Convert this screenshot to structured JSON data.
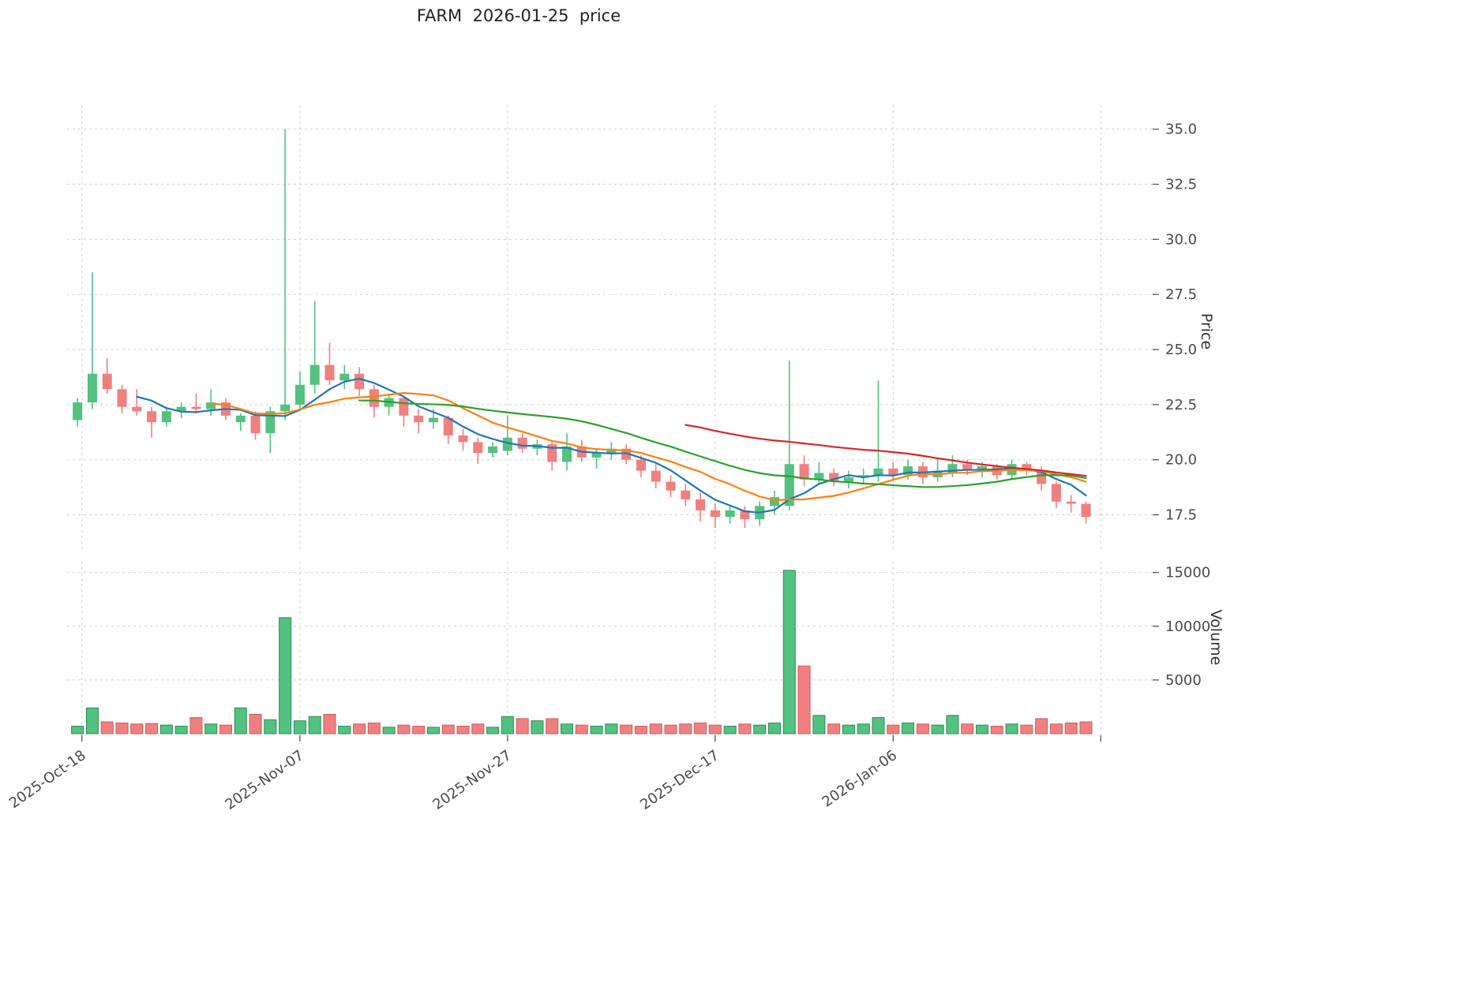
{
  "chart_data": {
    "type": "candlestick+volume",
    "title": "FARM  2026-01-25  price",
    "ylabel": "Price",
    "ylabel_volume": "Volume",
    "up_color": "#53c17f",
    "down_color": "#f08080",
    "up_edge": "#2e8b57",
    "down_edge": "#cd5c5c",
    "mav_windows": [
      5,
      10,
      20,
      42
    ],
    "mav_colors": [
      "#1f77b4",
      "#ff7f0e",
      "#2ca02c",
      "#d62728"
    ],
    "price_ticks": [
      17.5,
      20.0,
      22.5,
      25.0,
      27.5,
      30.0,
      32.5,
      35.0
    ],
    "price_ylim": [
      15.8,
      36.1
    ],
    "volume_ticks": [
      5000,
      10000,
      15000
    ],
    "volume_ylim": [
      0,
      16000
    ],
    "xlim": [
      -0.7,
      72.5
    ],
    "xticks": [
      {
        "i": 0.3,
        "label": "2025-Oct-18"
      },
      {
        "i": 15,
        "label": "2025-Nov-07"
      },
      {
        "i": 29,
        "label": "2025-Nov-27"
      },
      {
        "i": 43,
        "label": "2025-Dec-17"
      },
      {
        "i": 55,
        "label": "2026-Jan-06"
      },
      {
        "i": 69,
        "label": ""
      }
    ],
    "dates": [
      "2025-10-17",
      "2025-10-20",
      "2025-10-21",
      "2025-10-22",
      "2025-10-23",
      "2025-10-24",
      "2025-10-27",
      "2025-10-28",
      "2025-10-29",
      "2025-10-30",
      "2025-10-31",
      "2025-11-03",
      "2025-11-04",
      "2025-11-05",
      "2025-11-06",
      "2025-11-07",
      "2025-11-10",
      "2025-11-11",
      "2025-11-12",
      "2025-11-13",
      "2025-11-14",
      "2025-11-17",
      "2025-11-18",
      "2025-11-19",
      "2025-11-20",
      "2025-11-21",
      "2025-11-24",
      "2025-11-25",
      "2025-11-26",
      "2025-11-27",
      "2025-11-28",
      "2025-12-01",
      "2025-12-02",
      "2025-12-03",
      "2025-12-04",
      "2025-12-05",
      "2025-12-08",
      "2025-12-09",
      "2025-12-10",
      "2025-12-11",
      "2025-12-12",
      "2025-12-15",
      "2025-12-16",
      "2025-12-17",
      "2025-12-18",
      "2025-12-19",
      "2025-12-22",
      "2025-12-23",
      "2025-12-24",
      "2025-12-26",
      "2025-12-29",
      "2025-12-30",
      "2025-12-31",
      "2026-01-02",
      "2026-01-05",
      "2026-01-06",
      "2026-01-07",
      "2026-01-08",
      "2026-01-09",
      "2026-01-12",
      "2026-01-13",
      "2026-01-14",
      "2026-01-15",
      "2026-01-16",
      "2026-01-19",
      "2026-01-20",
      "2026-01-21",
      "2026-01-22",
      "2026-01-23"
    ],
    "ohlc": [
      [
        21.8,
        22.8,
        21.5,
        22.6
      ],
      [
        22.6,
        28.5,
        22.3,
        23.9
      ],
      [
        23.9,
        24.6,
        23.0,
        23.2
      ],
      [
        23.2,
        23.4,
        22.1,
        22.4
      ],
      [
        22.4,
        23.2,
        22.0,
        22.2
      ],
      [
        22.2,
        22.4,
        21.0,
        21.7
      ],
      [
        21.7,
        22.4,
        21.5,
        22.2
      ],
      [
        22.2,
        22.6,
        21.9,
        22.4
      ],
      [
        22.4,
        23.0,
        22.1,
        22.3
      ],
      [
        22.3,
        23.2,
        22.0,
        22.6
      ],
      [
        22.6,
        22.8,
        21.8,
        22.0
      ],
      [
        21.7,
        22.1,
        21.3,
        22.0
      ],
      [
        22.0,
        22.2,
        20.9,
        21.2
      ],
      [
        21.2,
        22.4,
        20.3,
        22.2
      ],
      [
        22.2,
        35.0,
        21.8,
        22.5
      ],
      [
        22.5,
        24.0,
        22.2,
        23.4
      ],
      [
        23.4,
        27.2,
        23.0,
        24.3
      ],
      [
        24.3,
        25.3,
        23.4,
        23.6
      ],
      [
        23.6,
        24.3,
        23.2,
        23.9
      ],
      [
        23.9,
        24.2,
        22.9,
        23.2
      ],
      [
        23.2,
        23.4,
        21.9,
        22.4
      ],
      [
        22.4,
        23.0,
        22.0,
        22.8
      ],
      [
        22.8,
        22.9,
        21.5,
        22.0
      ],
      [
        22.0,
        22.3,
        21.2,
        21.7
      ],
      [
        21.7,
        22.3,
        21.4,
        21.9
      ],
      [
        21.9,
        22.0,
        20.7,
        21.1
      ],
      [
        21.1,
        21.4,
        20.4,
        20.8
      ],
      [
        20.8,
        21.0,
        19.8,
        20.3
      ],
      [
        20.3,
        20.8,
        20.1,
        20.6
      ],
      [
        20.4,
        22.0,
        20.2,
        21.0
      ],
      [
        21.0,
        21.2,
        20.3,
        20.5
      ],
      [
        20.5,
        20.9,
        20.2,
        20.7
      ],
      [
        20.7,
        20.8,
        19.5,
        19.9
      ],
      [
        19.9,
        21.2,
        19.5,
        20.6
      ],
      [
        20.6,
        20.9,
        19.9,
        20.1
      ],
      [
        20.1,
        20.5,
        19.6,
        20.3
      ],
      [
        20.3,
        20.8,
        20.0,
        20.5
      ],
      [
        20.5,
        20.7,
        19.8,
        20.0
      ],
      [
        20.0,
        20.2,
        19.2,
        19.5
      ],
      [
        19.5,
        19.8,
        18.7,
        19.0
      ],
      [
        19.0,
        19.3,
        18.3,
        18.6
      ],
      [
        18.6,
        18.9,
        17.9,
        18.2
      ],
      [
        18.2,
        18.5,
        17.2,
        17.7
      ],
      [
        17.7,
        18.0,
        16.9,
        17.4
      ],
      [
        17.4,
        17.9,
        17.1,
        17.7
      ],
      [
        17.7,
        17.9,
        16.9,
        17.3
      ],
      [
        17.3,
        18.1,
        17.0,
        17.9
      ],
      [
        17.9,
        18.6,
        17.5,
        18.3
      ],
      [
        17.9,
        24.5,
        17.7,
        19.8
      ],
      [
        19.8,
        20.2,
        18.8,
        19.1
      ],
      [
        19.1,
        19.9,
        18.9,
        19.4
      ],
      [
        19.4,
        19.6,
        18.8,
        19.0
      ],
      [
        19.0,
        19.5,
        18.7,
        19.2
      ],
      [
        19.2,
        19.6,
        18.9,
        19.3
      ],
      [
        19.3,
        23.6,
        19.0,
        19.6
      ],
      [
        19.6,
        19.9,
        19.1,
        19.3
      ],
      [
        19.3,
        20.0,
        19.1,
        19.7
      ],
      [
        19.7,
        19.9,
        18.9,
        19.2
      ],
      [
        19.2,
        20.1,
        19.0,
        19.5
      ],
      [
        19.4,
        20.2,
        19.2,
        19.8
      ],
      [
        19.8,
        20.0,
        19.3,
        19.5
      ],
      [
        19.5,
        19.9,
        19.2,
        19.7
      ],
      [
        19.7,
        19.8,
        19.1,
        19.3
      ],
      [
        19.3,
        20.0,
        19.1,
        19.8
      ],
      [
        19.8,
        19.9,
        19.3,
        19.5
      ],
      [
        19.5,
        19.7,
        18.6,
        18.9
      ],
      [
        18.9,
        19.0,
        17.8,
        18.1
      ],
      [
        18.1,
        18.4,
        17.6,
        18.0
      ],
      [
        18.0,
        18.1,
        17.1,
        17.4
      ]
    ],
    "volume": [
      700,
      2400,
      1100,
      1000,
      900,
      950,
      800,
      700,
      1500,
      900,
      800,
      2400,
      1800,
      1300,
      10800,
      1200,
      1600,
      1800,
      700,
      900,
      1000,
      600,
      800,
      700,
      600,
      800,
      700,
      900,
      600,
      1600,
      1400,
      1200,
      1400,
      900,
      800,
      700,
      900,
      800,
      700,
      900,
      800,
      900,
      1000,
      800,
      700,
      900,
      800,
      1000,
      15200,
      6300,
      1700,
      900,
      800,
      900,
      1500,
      800,
      1000,
      900,
      800,
      1700,
      900,
      800,
      700,
      900,
      800,
      1400,
      900,
      1000,
      1100
    ]
  }
}
